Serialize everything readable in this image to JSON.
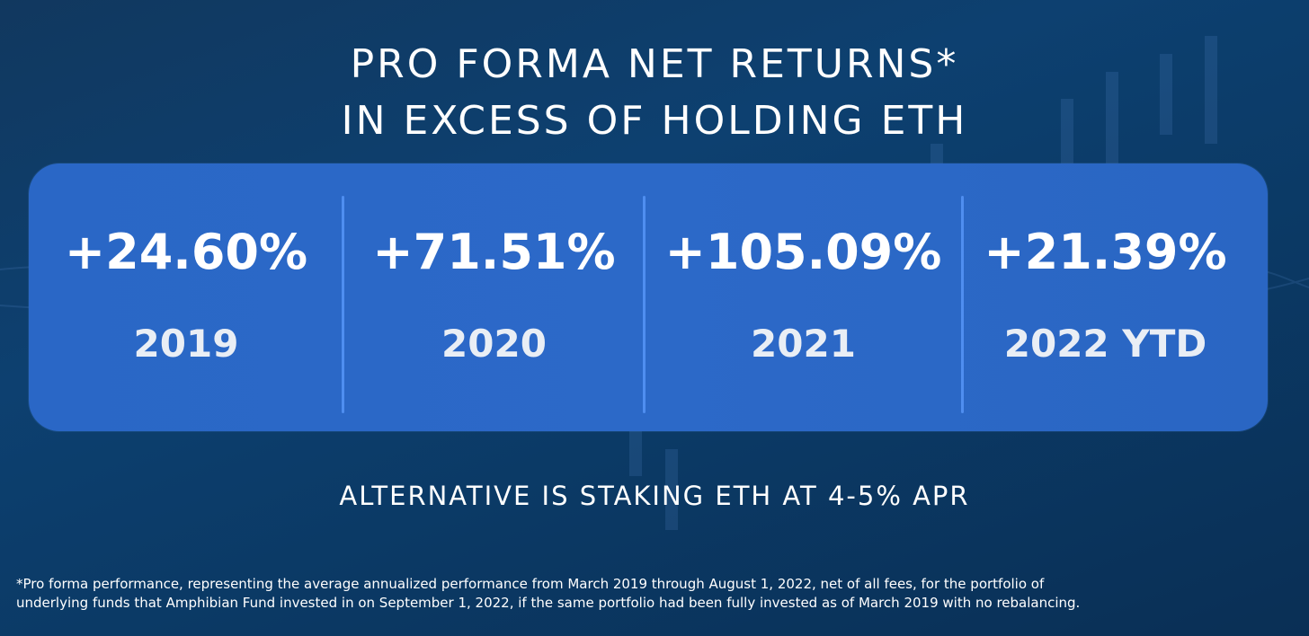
{
  "title": {
    "line1": "PRO FORMA NET RETURNS*",
    "line2": "IN EXCESS OF HOLDING ETH"
  },
  "stats": [
    {
      "value": "+24.60%",
      "year": "2019"
    },
    {
      "value": "+71.51%",
      "year": "2020"
    },
    {
      "value": "+105.09%",
      "year": "2021"
    },
    {
      "value": "+21.39%",
      "year": "2022 YTD"
    }
  ],
  "subtitle": "ALTERNATIVE IS STAKING ETH AT 4-5% APR",
  "footnote": {
    "line1": "*Pro forma performance, representing the average annualized performance from March 2019 through August 1, 2022, net of all fees, for the portfolio of",
    "line2": "underlying funds that Amphibian Fund invested in on September 1, 2022, if the same portfolio had been fully invested as of March 2019 with no rebalancing."
  },
  "colors": {
    "background": "#0d4070",
    "card": "#2a67c6",
    "divider": "#4f8ef0",
    "text": "#ffffff"
  }
}
